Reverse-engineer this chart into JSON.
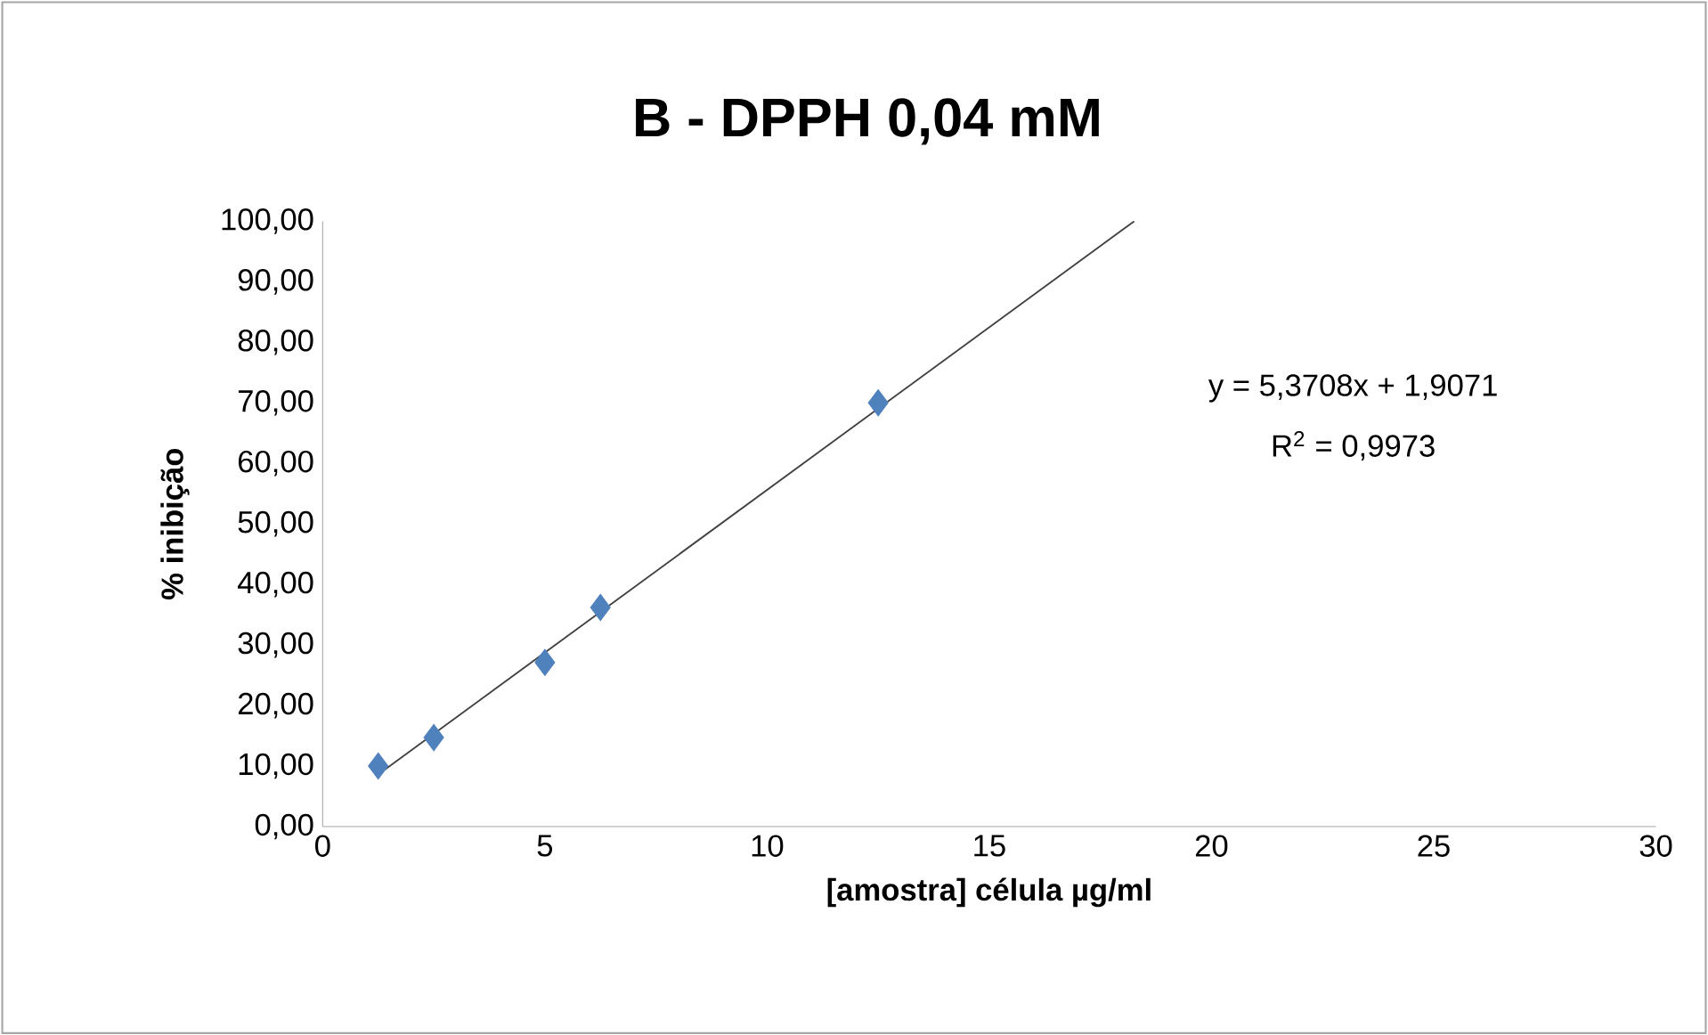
{
  "chart_data": {
    "type": "scatter",
    "title": "B - DPPH 0,04 mM",
    "xlabel": "[amostra] célula µg/ml",
    "ylabel": "% inibição",
    "xlim": [
      0,
      30
    ],
    "xticks": [
      0,
      5,
      10,
      15,
      20,
      25,
      30
    ],
    "ylim": [
      0,
      100
    ],
    "yticks": [
      {
        "value": 0,
        "label": "0,00"
      },
      {
        "value": 10,
        "label": "10,00"
      },
      {
        "value": 20,
        "label": "20,00"
      },
      {
        "value": 30,
        "label": "30,00"
      },
      {
        "value": 40,
        "label": "40,00"
      },
      {
        "value": 50,
        "label": "50,00"
      },
      {
        "value": 60,
        "label": "60,00"
      },
      {
        "value": 70,
        "label": "70,00"
      },
      {
        "value": 80,
        "label": "80,00"
      },
      {
        "value": 90,
        "label": "90,00"
      },
      {
        "value": 100,
        "label": "100,00"
      }
    ],
    "marker": "diamond",
    "grid": false,
    "series": [
      {
        "color": "#4f81bd",
        "x": [
          1.25,
          2.5,
          5,
          6.25,
          12.5
        ],
        "values": [
          10,
          14.7,
          27.1,
          36.2,
          70
        ]
      },
      {
        "type": "line",
        "color": "#404040",
        "marker": "none",
        "x": [
          1.25,
          18.26
        ],
        "values": [
          8.6,
          100
        ]
      }
    ],
    "annotations": [
      "y = 5,3708x + 1,9071",
      "R$^{2}$ = 0,9973"
    ]
  }
}
